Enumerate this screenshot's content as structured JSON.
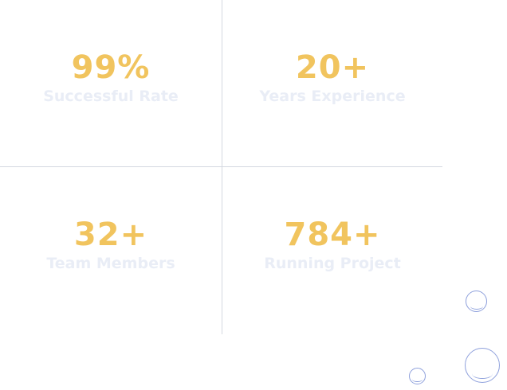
{
  "stats": [
    {
      "value": "99%",
      "label": "Successful Rate"
    },
    {
      "value": "20+",
      "label": "Years Experience"
    },
    {
      "value": "32+",
      "label": "Team Members"
    },
    {
      "value": "784+",
      "label": "Running Project"
    }
  ],
  "colors": {
    "accent": "#f1c45e",
    "label": "#e9edf6",
    "divider": "#d4d8e0",
    "bubble": "#8ea0dc"
  },
  "decorations": {
    "icon": "bubble-icon"
  }
}
